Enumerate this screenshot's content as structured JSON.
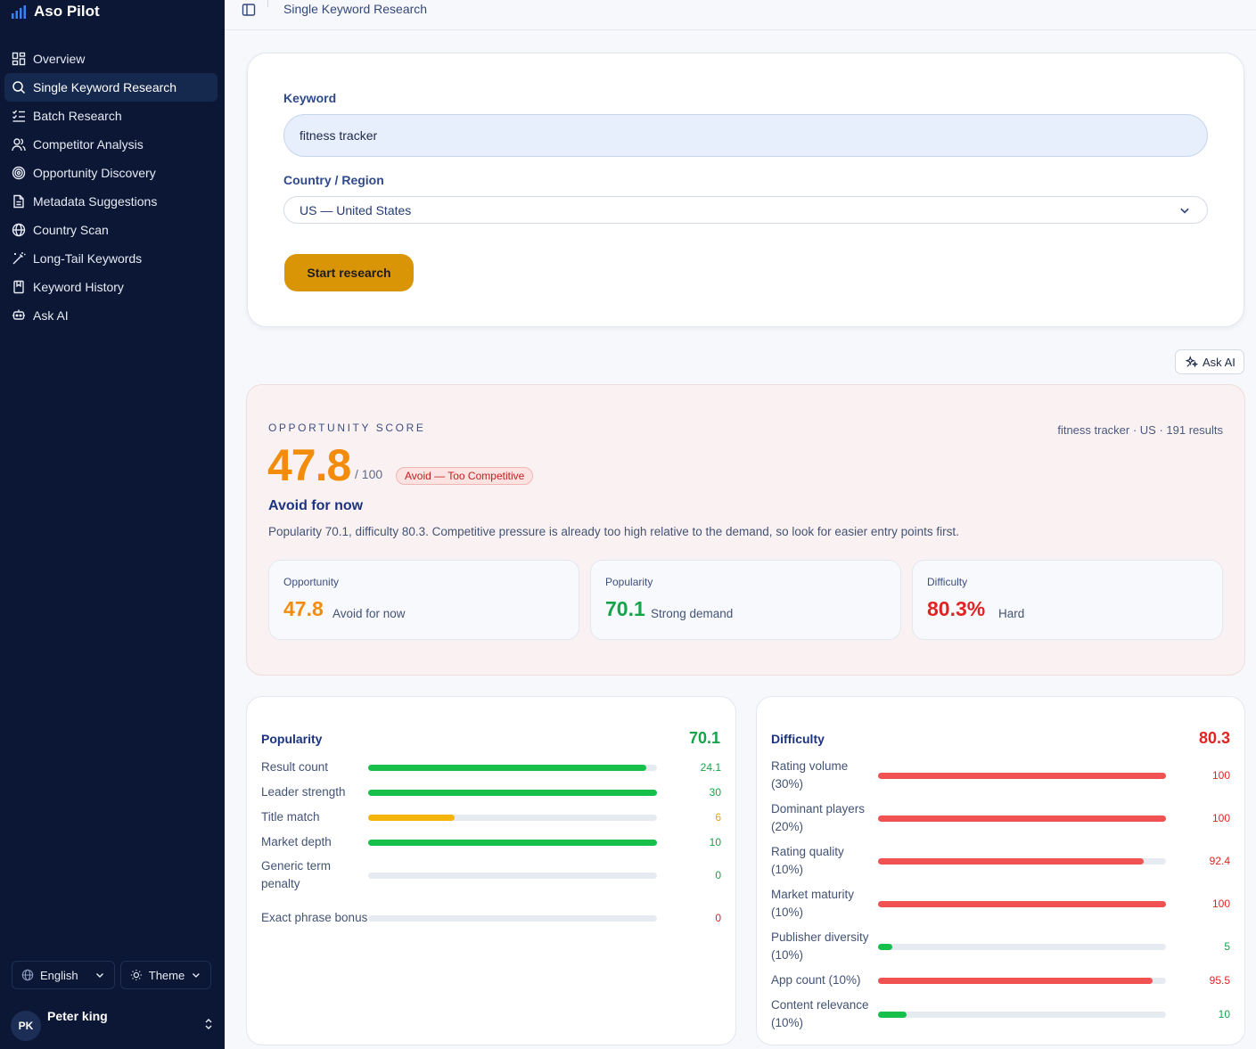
{
  "app": {
    "name": "Aso Pilot"
  },
  "sidebar": {
    "items": [
      {
        "label": "Overview",
        "icon": "dashboard-icon",
        "active": false
      },
      {
        "label": "Single Keyword Research",
        "icon": "search-icon",
        "active": true
      },
      {
        "label": "Batch Research",
        "icon": "list-checks-icon",
        "active": false
      },
      {
        "label": "Competitor Analysis",
        "icon": "users-icon",
        "active": false
      },
      {
        "label": "Opportunity Discovery",
        "icon": "target-icon",
        "active": false
      },
      {
        "label": "Metadata Suggestions",
        "icon": "document-icon",
        "active": false
      },
      {
        "label": "Country Scan",
        "icon": "globe-icon",
        "active": false
      },
      {
        "label": "Long-Tail Keywords",
        "icon": "magic-wand-icon",
        "active": false
      },
      {
        "label": "Keyword History",
        "icon": "bookmark-icon",
        "active": false
      },
      {
        "label": "Ask AI",
        "icon": "chat-bot-icon",
        "active": false
      }
    ],
    "language": "English",
    "theme": "Theme",
    "user": {
      "initials": "PK",
      "name": "Peter king"
    }
  },
  "topbar": {
    "breadcrumb": "Single Keyword Research"
  },
  "form": {
    "keyword_label": "Keyword",
    "keyword_value": "fitness tracker",
    "country_label": "Country / Region",
    "country_value": "US — United States",
    "submit_label": "Start research"
  },
  "ask_ai_label": "Ask AI",
  "opportunity": {
    "caption": "OPPORTUNITY SCORE",
    "meta": "fitness tracker · US · 191 results",
    "score": "47.8",
    "max": "/ 100",
    "badge": "Avoid — Too Competitive",
    "verdict": "Avoid for now",
    "description": "Popularity 70.1, difficulty 80.3. Competitive pressure is already too high relative to the demand, so look for easier entry points first.",
    "metrics": [
      {
        "label": "Opportunity",
        "value": "47.8",
        "sub": "Avoid for now",
        "color": "#f28c0a"
      },
      {
        "label": "Popularity",
        "value": "70.1",
        "sub": "Strong demand",
        "color": "#16a34a"
      },
      {
        "label": "Difficulty",
        "value": "80.3%",
        "sub": "Hard",
        "color": "#e02424"
      }
    ]
  },
  "popularity": {
    "title": "Popularity",
    "total": "70.1",
    "rows": [
      {
        "label": "Result count",
        "value": "24.1",
        "fraction": 0.963,
        "color": "#16c04a"
      },
      {
        "label": "Leader strength",
        "value": "30",
        "fraction": 1.0,
        "color": "#16c04a"
      },
      {
        "label": "Title match",
        "value": "6",
        "fraction": 0.3,
        "color": "#f5b40a"
      },
      {
        "label": "Market depth",
        "value": "10",
        "fraction": 1.0,
        "color": "#16c04a"
      },
      {
        "label": "Generic term penalty",
        "value": "0",
        "fraction": 0,
        "color": "#16c04a"
      },
      {
        "label": "Exact phrase bonus",
        "value": "0",
        "fraction": 0,
        "color": "#e02424"
      }
    ]
  },
  "difficulty": {
    "title": "Difficulty",
    "total": "80.3",
    "rows": [
      {
        "label": "Rating volume (30%)",
        "value": "100",
        "fraction": 1.0,
        "color": "#f05252"
      },
      {
        "label": "Dominant players (20%)",
        "value": "100",
        "fraction": 1.0,
        "color": "#f05252"
      },
      {
        "label": "Rating quality (10%)",
        "value": "92.4",
        "fraction": 0.924,
        "color": "#f05252"
      },
      {
        "label": "Market maturity (10%)",
        "value": "100",
        "fraction": 1.0,
        "color": "#f05252"
      },
      {
        "label": "Publisher diversity (10%)",
        "value": "5",
        "fraction": 0.05,
        "color": "#16c04a"
      },
      {
        "label": "App count (10%)",
        "value": "95.5",
        "fraction": 0.955,
        "color": "#f05252"
      },
      {
        "label": "Content relevance (10%)",
        "value": "10",
        "fraction": 0.1,
        "color": "#16c04a"
      }
    ]
  }
}
